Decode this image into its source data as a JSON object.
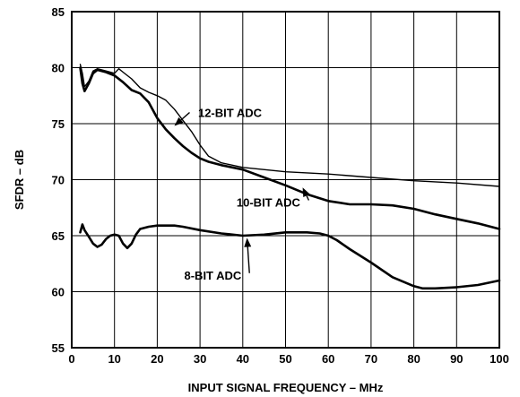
{
  "chart_data": {
    "type": "line",
    "title": "",
    "xlabel": "INPUT SIGNAL FREQUENCY – MHz",
    "ylabel": "SFDR – dB",
    "xlim": [
      0,
      100
    ],
    "ylim": [
      55,
      85
    ],
    "xticks": [
      0,
      10,
      20,
      30,
      40,
      50,
      60,
      70,
      80,
      90,
      100
    ],
    "yticks": [
      55,
      60,
      65,
      70,
      75,
      80,
      85
    ],
    "grid": true,
    "legend": "none",
    "series": [
      {
        "name": "12-BIT ADC",
        "stroke": "thin",
        "points": [
          [
            2,
            80.3
          ],
          [
            2.5,
            79.5
          ],
          [
            3,
            78.3
          ],
          [
            4,
            78.8
          ],
          [
            5,
            79.7
          ],
          [
            6,
            79.9
          ],
          [
            8,
            79.7
          ],
          [
            10,
            79.5
          ],
          [
            11,
            79.9
          ],
          [
            12,
            79.6
          ],
          [
            14,
            79.0
          ],
          [
            16,
            78.2
          ],
          [
            18,
            77.8
          ],
          [
            20,
            77.5
          ],
          [
            22,
            77.1
          ],
          [
            24,
            76.3
          ],
          [
            26,
            75.3
          ],
          [
            28,
            74.3
          ],
          [
            30,
            73.1
          ],
          [
            32,
            72.1
          ],
          [
            35,
            71.5
          ],
          [
            40,
            71.1
          ],
          [
            50,
            70.7
          ],
          [
            60,
            70.5
          ],
          [
            70,
            70.2
          ],
          [
            80,
            69.9
          ],
          [
            90,
            69.7
          ],
          [
            100,
            69.4
          ]
        ]
      },
      {
        "name": "10-BIT ADC",
        "stroke": "thick",
        "points": [
          [
            2,
            80.0
          ],
          [
            2.5,
            78.6
          ],
          [
            3,
            77.9
          ],
          [
            4,
            78.6
          ],
          [
            5,
            79.5
          ],
          [
            6,
            79.8
          ],
          [
            8,
            79.6
          ],
          [
            10,
            79.3
          ],
          [
            12,
            78.7
          ],
          [
            14,
            78.0
          ],
          [
            16,
            77.7
          ],
          [
            18,
            76.9
          ],
          [
            20,
            75.5
          ],
          [
            22,
            74.5
          ],
          [
            24,
            73.7
          ],
          [
            26,
            73.0
          ],
          [
            28,
            72.4
          ],
          [
            30,
            71.9
          ],
          [
            32,
            71.6
          ],
          [
            35,
            71.3
          ],
          [
            40,
            70.9
          ],
          [
            45,
            70.2
          ],
          [
            50,
            69.5
          ],
          [
            55,
            68.7
          ],
          [
            60,
            68.1
          ],
          [
            65,
            67.8
          ],
          [
            70,
            67.8
          ],
          [
            75,
            67.7
          ],
          [
            80,
            67.4
          ],
          [
            85,
            66.9
          ],
          [
            90,
            66.5
          ],
          [
            95,
            66.1
          ],
          [
            100,
            65.6
          ]
        ]
      },
      {
        "name": "8-BIT ADC",
        "stroke": "thick",
        "points": [
          [
            2,
            65.3
          ],
          [
            2.5,
            66.0
          ],
          [
            3,
            65.5
          ],
          [
            4,
            64.9
          ],
          [
            5,
            64.3
          ],
          [
            6,
            64.0
          ],
          [
            7,
            64.2
          ],
          [
            8,
            64.7
          ],
          [
            9,
            65.0
          ],
          [
            10,
            65.1
          ],
          [
            11,
            65.0
          ],
          [
            12,
            64.3
          ],
          [
            13,
            63.9
          ],
          [
            14,
            64.3
          ],
          [
            15,
            65.1
          ],
          [
            16,
            65.6
          ],
          [
            18,
            65.8
          ],
          [
            20,
            65.9
          ],
          [
            22,
            65.9
          ],
          [
            24,
            65.9
          ],
          [
            26,
            65.8
          ],
          [
            30,
            65.5
          ],
          [
            35,
            65.2
          ],
          [
            40,
            65.0
          ],
          [
            45,
            65.1
          ],
          [
            50,
            65.3
          ],
          [
            55,
            65.3
          ],
          [
            58,
            65.2
          ],
          [
            60,
            65.0
          ],
          [
            62,
            64.6
          ],
          [
            65,
            63.8
          ],
          [
            70,
            62.6
          ],
          [
            75,
            61.3
          ],
          [
            80,
            60.5
          ],
          [
            82,
            60.3
          ],
          [
            85,
            60.3
          ],
          [
            90,
            60.4
          ],
          [
            95,
            60.6
          ],
          [
            100,
            61.0
          ]
        ]
      }
    ],
    "annotations": [
      {
        "text": "12-BIT ADC",
        "x": 37,
        "y": 76.0,
        "arrow_to": [
          24,
          74.8
        ]
      },
      {
        "text": "10-BIT ADC",
        "x": 46,
        "y": 68.0,
        "arrow_to": [
          54,
          69.3
        ]
      },
      {
        "text": "8-BIT ADC",
        "x": 33,
        "y": 61.5,
        "arrow_to": [
          41,
          64.8
        ]
      }
    ]
  }
}
